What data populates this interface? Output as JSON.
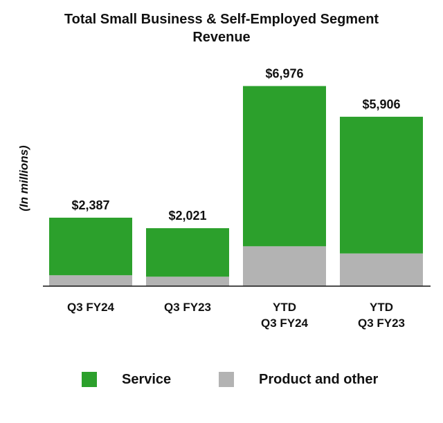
{
  "chart_data": {
    "type": "bar",
    "stacked": true,
    "title": "Total Small Business & Self-Employed Segment Revenue",
    "title_lines": [
      "Total Small Business & Self-Employed Segment",
      "Revenue"
    ],
    "ylabel": "(In millions)",
    "xlabel": "",
    "ylim": [
      0,
      8000
    ],
    "grid": false,
    "legend_position": "bottom",
    "categories": [
      [
        "Q3 FY24"
      ],
      [
        "Q3 FY23"
      ],
      [
        "YTD",
        "Q3 FY24"
      ],
      [
        "YTD",
        "Q3 FY23"
      ]
    ],
    "series": [
      {
        "name": "Product and other",
        "color": "#b3b3b3",
        "values": [
          380,
          330,
          1390,
          1140
        ]
      },
      {
        "name": "Service",
        "color": "#2ca02c",
        "values": [
          2007,
          1691,
          5586,
          4766
        ]
      }
    ],
    "totals": [
      2387,
      2021,
      6976,
      5906
    ],
    "total_labels": [
      "$2,387",
      "$2,021",
      "$6,976",
      "$5,906"
    ]
  },
  "legend": [
    {
      "label": "Service",
      "color": "#2ca02c"
    },
    {
      "label": "Product and other",
      "color": "#b3b3b3"
    }
  ]
}
